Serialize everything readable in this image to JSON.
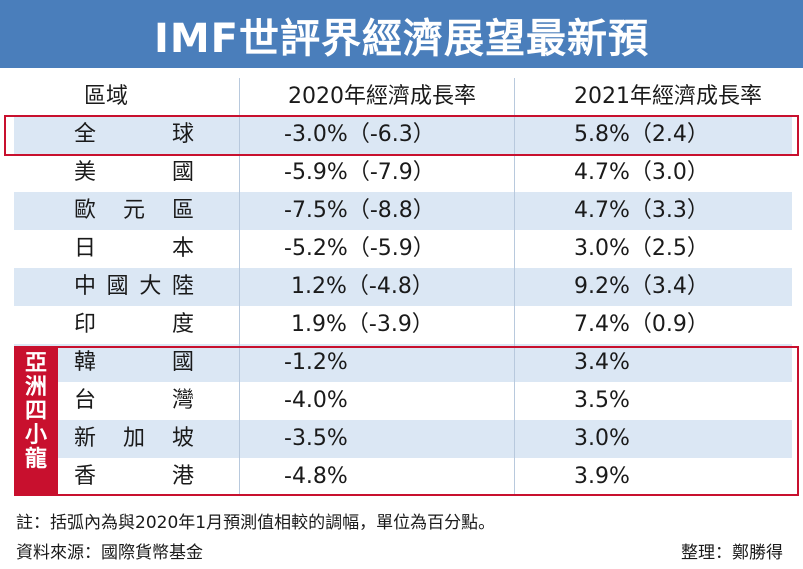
{
  "title": "IMF世評界經濟展望最新預",
  "table": {
    "headers": {
      "region": "區域",
      "y2020": "2020年經濟成長率",
      "y2021": "2021年經濟成長率"
    },
    "rows": [
      {
        "region": "全球",
        "y2020": "-3.0%（-6.3）",
        "y2021": "5.8%（2.4）"
      },
      {
        "region": "美國",
        "y2020": "-5.9%（-7.9）",
        "y2021": "4.7%（3.0）"
      },
      {
        "region": "歐元區",
        "y2020": "-7.5%（-8.8）",
        "y2021": "4.7%（3.3）"
      },
      {
        "region": "日本",
        "y2020": "-5.2%（-5.9）",
        "y2021": "3.0%（2.5）"
      },
      {
        "region": "中國大陸",
        "y2020": " 1.2%（-4.8）",
        "y2021": "9.2%（3.4）"
      },
      {
        "region": "印度",
        "y2020": " 1.9%（-3.9）",
        "y2021": "7.4%（0.9）"
      },
      {
        "region": "韓國",
        "y2020": "-1.2%",
        "y2021": "3.4%"
      },
      {
        "region": "台灣",
        "y2020": "-4.0%",
        "y2021": "3.5%"
      },
      {
        "region": "新加坡",
        "y2020": "-3.5%",
        "y2021": "3.0%"
      },
      {
        "region": "香港",
        "y2020": "-4.8%",
        "y2021": "3.9%"
      }
    ],
    "group_label": [
      "亞",
      "洲",
      "四",
      "小",
      "龍"
    ]
  },
  "footer": {
    "note": "註：括弧內為與2020年1月預測值相較的調幅，單位為百分點。",
    "source": "資料來源：國際貨幣基金",
    "credit": "整理：鄭勝得"
  },
  "colors": {
    "header_bg": "#4a7ebb",
    "row_alt": "#dbe7f4",
    "highlight": "#c8102e"
  }
}
